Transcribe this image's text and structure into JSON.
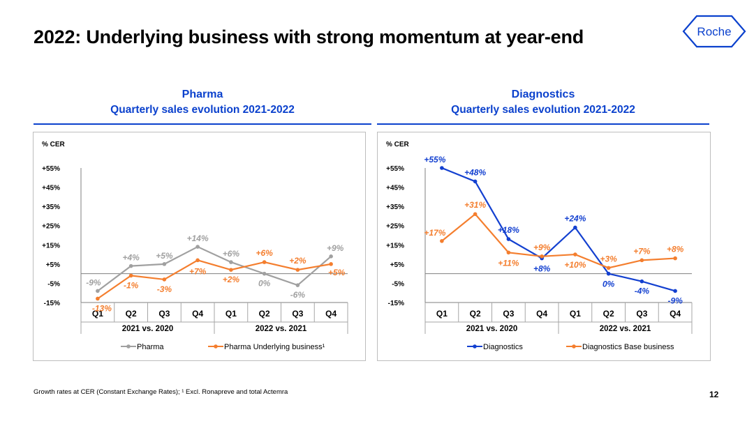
{
  "page": {
    "title": "2022: Underlying business with strong momentum at year-end",
    "logo_text": "Roche",
    "footnote": "Growth rates at CER (Constant Exchange Rates); ¹ Excl. Ronapreve and total Actemra",
    "page_number": "12"
  },
  "colors": {
    "brand_blue": "#0b41cd",
    "gray_series": "#a0a0a0",
    "orange_series": "#f47e2e",
    "blue_series": "#1340d0"
  },
  "chart_data": [
    {
      "type": "line",
      "panel_title": "Pharma",
      "panel_subtitle": "Quarterly sales evolution 2021-2022",
      "ylabel": "% CER",
      "ylim": [
        -15,
        55
      ],
      "y_ticks": [
        "+55%",
        "+45%",
        "+35%",
        "+25%",
        "+15%",
        "+5%",
        "-5%",
        "-15%"
      ],
      "y_tick_values": [
        55,
        45,
        35,
        25,
        15,
        5,
        -5,
        -15
      ],
      "categories": [
        "Q1",
        "Q2",
        "Q3",
        "Q4",
        "Q1",
        "Q2",
        "Q3",
        "Q4"
      ],
      "groups": [
        "2021 vs. 2020",
        "2022 vs. 2021"
      ],
      "legend": "bottom",
      "series": [
        {
          "name": "Pharma",
          "color": "#a0a0a0",
          "values": [
            -9,
            4,
            5,
            14,
            6,
            0,
            -6,
            9
          ],
          "labels": [
            "-9%",
            "+4%",
            "+5%",
            "+14%",
            "+6%",
            "0%",
            "-6%",
            "+9%"
          ]
        },
        {
          "name": "Pharma Underlying business¹",
          "color": "#f47e2e",
          "values": [
            -13,
            -1,
            -3,
            7,
            2,
            6,
            2,
            5
          ],
          "labels": [
            "-13%",
            "-1%",
            "-3%",
            "+7%",
            "+2%",
            "+6%",
            "+2%",
            "+5%"
          ]
        }
      ]
    },
    {
      "type": "line",
      "panel_title": "Diagnostics",
      "panel_subtitle": "Quarterly sales evolution 2021-2022",
      "ylabel": "% CER",
      "ylim": [
        -15,
        55
      ],
      "y_ticks": [
        "+55%",
        "+45%",
        "+35%",
        "+25%",
        "+15%",
        "+5%",
        "-5%",
        "-15%"
      ],
      "y_tick_values": [
        55,
        45,
        35,
        25,
        15,
        5,
        -5,
        -15
      ],
      "categories": [
        "Q1",
        "Q2",
        "Q3",
        "Q4",
        "Q1",
        "Q2",
        "Q3",
        "Q4"
      ],
      "groups": [
        "2021 vs. 2020",
        "2022 vs. 2021"
      ],
      "legend": "bottom",
      "series": [
        {
          "name": "Diagnostics",
          "color": "#1340d0",
          "values": [
            55,
            48,
            18,
            8,
            24,
            0,
            -4,
            -9
          ],
          "labels": [
            "+55%",
            "+48%",
            "+18%",
            "+8%",
            "+24%",
            "0%",
            "-4%",
            "-9%"
          ]
        },
        {
          "name": "Diagnostics Base business",
          "color": "#f47e2e",
          "values": [
            17,
            31,
            11,
            9,
            10,
            3,
            7,
            8
          ],
          "labels": [
            "+17%",
            "+31%",
            "+11%",
            "+9%",
            "+10%",
            "+3%",
            "+7%",
            "+8%"
          ]
        }
      ]
    }
  ]
}
